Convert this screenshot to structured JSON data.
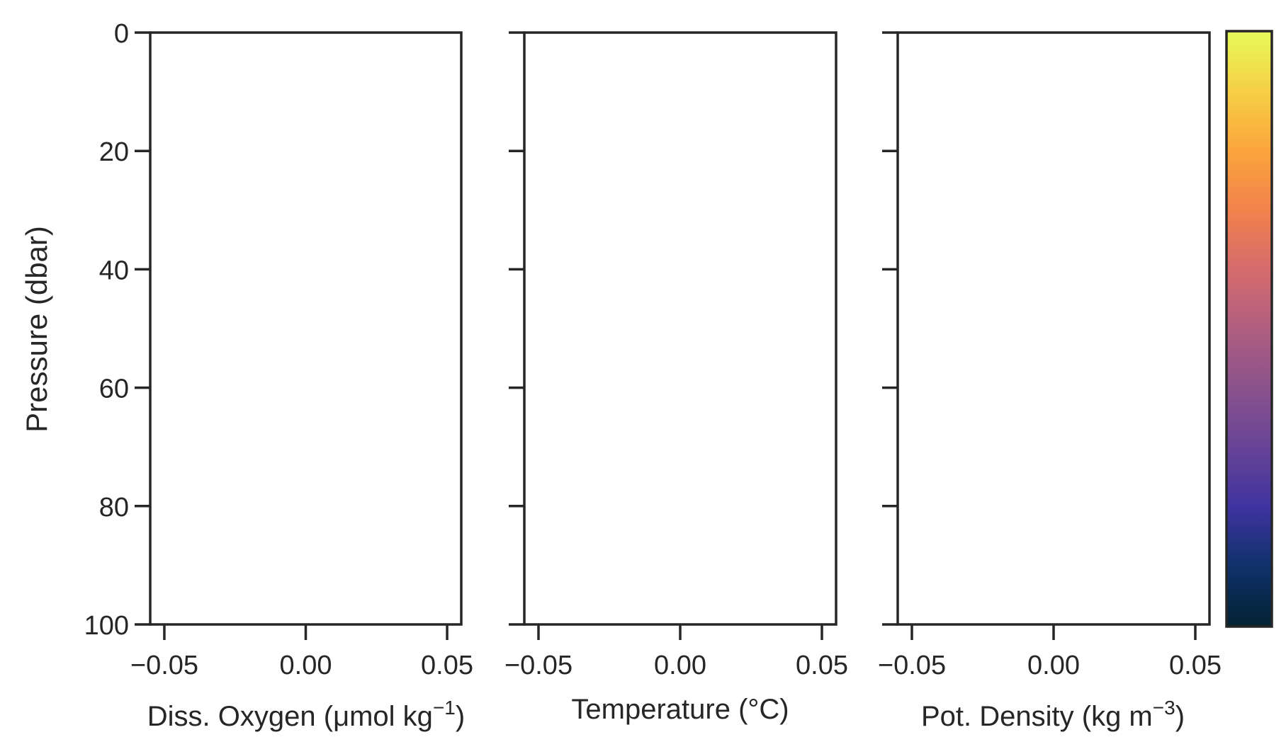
{
  "chart_data": [
    {
      "type": "line",
      "xlabel": "Diss. Oxygen (μmol kg",
      "xlabel_sup": "−1",
      "xlabel_end": ")",
      "ylabel": "Pressure (dbar)",
      "xlim": [
        -0.055,
        0.055
      ],
      "ylim": [
        100,
        0
      ],
      "xticks": [
        "−0.05",
        "0.00",
        "0.05"
      ],
      "xtick_values": [
        -0.05,
        0,
        0.05
      ],
      "yticks": [
        "0",
        "20",
        "40",
        "60",
        "80",
        "100"
      ],
      "ytick_values": [
        0,
        20,
        40,
        60,
        80,
        100
      ],
      "series": [],
      "grid": false
    },
    {
      "type": "line",
      "xlabel": "Temperature (°C)",
      "xlabel_sup": "",
      "xlabel_end": "",
      "ylabel": "",
      "xlim": [
        -0.055,
        0.055
      ],
      "ylim": [
        100,
        0
      ],
      "xticks": [
        "−0.05",
        "0.00",
        "0.05"
      ],
      "xtick_values": [
        -0.05,
        0,
        0.05
      ],
      "yticks": [],
      "ytick_values": [
        0,
        20,
        40,
        60,
        80,
        100
      ],
      "series": [],
      "grid": false
    },
    {
      "type": "line",
      "xlabel": "Pot. Density (kg m",
      "xlabel_sup": "−3",
      "xlabel_end": ")",
      "ylabel": "",
      "xlim": [
        -0.055,
        0.055
      ],
      "ylim": [
        100,
        0
      ],
      "xticks": [
        "−0.05",
        "0.00",
        "0.05"
      ],
      "xtick_values": [
        -0.05,
        0,
        0.05
      ],
      "yticks": [],
      "ytick_values": [
        0,
        20,
        40,
        60,
        80,
        100
      ],
      "series": [],
      "grid": false
    }
  ],
  "colorbar": {
    "colormap": "thermal",
    "colors": [
      "#032333",
      "#0f3169",
      "#3f339f",
      "#674396",
      "#8a528c",
      "#b05f81",
      "#d56b6c",
      "#f2824c",
      "#fba53c",
      "#f6d045",
      "#e7fa5a"
    ],
    "ticks": []
  },
  "style": {
    "axis_color": "#262626",
    "background": "#ffffff"
  }
}
